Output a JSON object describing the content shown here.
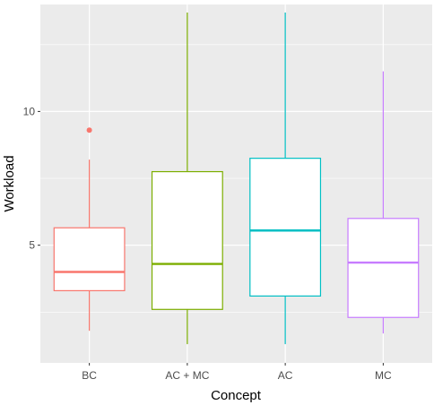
{
  "chart_data": {
    "type": "boxplot",
    "title": "",
    "xlabel": "Concept",
    "ylabel": "Workload",
    "ylim": [
      0.6,
      14.0
    ],
    "yticks": [
      5,
      10
    ],
    "ytick_labels": [
      "5",
      "10"
    ],
    "grid": true,
    "legend": "none",
    "categories": [
      "BC",
      "AC + MC",
      "AC",
      "MC"
    ],
    "colors": [
      "#F8766D",
      "#7CAE00",
      "#00BFC4",
      "#C77CFF"
    ],
    "boxes": [
      {
        "name": "BC",
        "whisker_low": 1.8,
        "q1": 3.3,
        "median": 4.0,
        "q3": 5.65,
        "whisker_high": 8.2,
        "outliers": [
          9.3
        ]
      },
      {
        "name": "AC + MC",
        "whisker_low": 1.3,
        "q1": 2.6,
        "median": 4.3,
        "q3": 7.75,
        "whisker_high": 13.7,
        "outliers": []
      },
      {
        "name": "AC",
        "whisker_low": 1.3,
        "q1": 3.1,
        "median": 5.55,
        "q3": 8.25,
        "whisker_high": 13.7,
        "outliers": []
      },
      {
        "name": "MC",
        "whisker_low": 1.7,
        "q1": 2.3,
        "median": 4.35,
        "q3": 6.0,
        "whisker_high": 11.5,
        "outliers": []
      }
    ]
  }
}
